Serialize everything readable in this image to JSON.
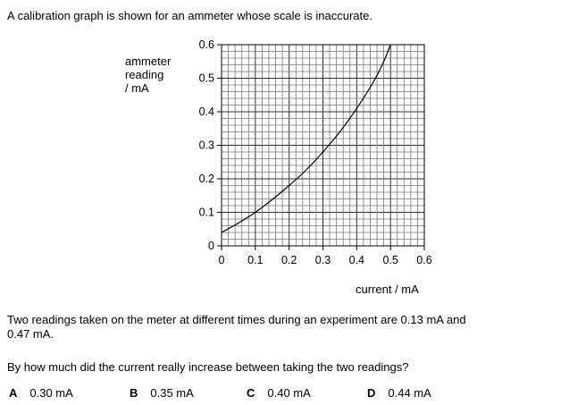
{
  "intro": "A calibration graph is shown for an ammeter whose scale is inaccurate.",
  "chart_data": {
    "type": "line",
    "title": "",
    "xlabel": "current / mA",
    "ylabel_lines": [
      "ammeter",
      "reading",
      "/ mA"
    ],
    "xlim": [
      0,
      0.6
    ],
    "ylim": [
      0,
      0.6
    ],
    "xticks": [
      "0",
      "0.1",
      "0.2",
      "0.3",
      "0.4",
      "0.5",
      "0.6"
    ],
    "yticks": [
      "0",
      "0.1",
      "0.2",
      "0.3",
      "0.4",
      "0.5",
      "0.6"
    ],
    "grid": true,
    "minor_grid_step": 0.02,
    "series": [
      {
        "name": "calibration curve",
        "x": [
          0,
          0.05,
          0.1,
          0.15,
          0.2,
          0.25,
          0.3,
          0.35,
          0.4,
          0.45,
          0.48,
          0.5
        ],
        "y": [
          0.04,
          0.068,
          0.1,
          0.138,
          0.18,
          0.226,
          0.28,
          0.34,
          0.41,
          0.49,
          0.55,
          0.6
        ]
      }
    ]
  },
  "question": {
    "para1_line1": "Two readings taken on the meter at different times during an experiment are 0.13 mA and",
    "para1_line2": "0.47 mA.",
    "para2": "By how much did the current really increase between taking the two readings?",
    "options": [
      {
        "letter": "A",
        "text": "0.30 mA"
      },
      {
        "letter": "B",
        "text": "0.35 mA"
      },
      {
        "letter": "C",
        "text": "0.40 mA"
      },
      {
        "letter": "D",
        "text": "0.44 mA"
      }
    ]
  }
}
